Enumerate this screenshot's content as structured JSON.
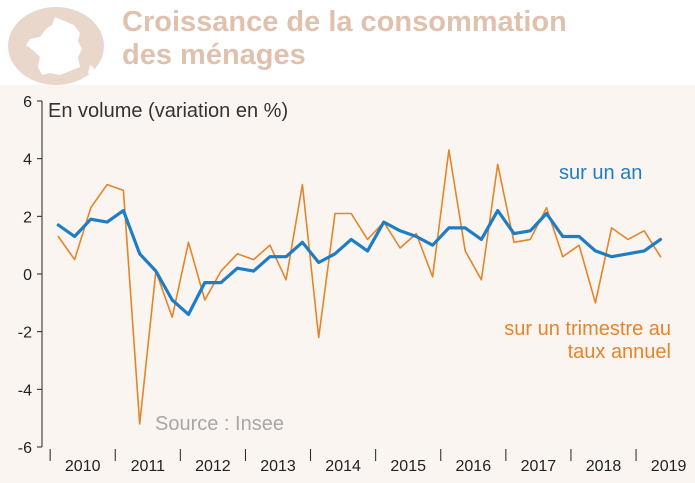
{
  "header": {
    "title_line1": "Croissance de la consommation",
    "title_line2": "des ménages",
    "badge_icon": "france-map-icon"
  },
  "colors": {
    "annual": "#1f7dc3",
    "quarterly": "#e3852a",
    "title": "#dfc1ae",
    "badge": "#ead7cb",
    "plot_background": "#fbf5f1"
  },
  "chart_data": {
    "type": "line",
    "subtitle": "En volume (variation en %)",
    "source": "Source : Insee",
    "xlabel": "",
    "ylabel": "",
    "ylim": [
      -6,
      6
    ],
    "yticks": [
      -6,
      -4,
      -2,
      0,
      2,
      4,
      6
    ],
    "xlim": [
      2009.75,
      2019.55
    ],
    "year_labels": [
      "2010",
      "2011",
      "2012",
      "2013",
      "2014",
      "2015",
      "2016",
      "2017",
      "2018",
      "2019"
    ],
    "grid": false,
    "legend": "inline labels next to the lines",
    "series": [
      {
        "name": "sur un an",
        "label_lines": [
          "sur un an"
        ],
        "color": "#1f7dc3",
        "x": [
          2010.0,
          2010.25,
          2010.5,
          2010.75,
          2011.0,
          2011.25,
          2011.5,
          2011.75,
          2012.0,
          2012.25,
          2012.5,
          2012.75,
          2013.0,
          2013.25,
          2013.5,
          2013.75,
          2014.0,
          2014.25,
          2014.5,
          2014.75,
          2015.0,
          2015.25,
          2015.5,
          2015.75,
          2016.0,
          2016.25,
          2016.5,
          2016.75,
          2017.0,
          2017.25,
          2017.5,
          2017.75,
          2018.0,
          2018.25,
          2018.5,
          2018.75,
          2019.0,
          2019.25
        ],
        "values": [
          1.7,
          1.3,
          1.9,
          1.8,
          2.2,
          0.7,
          0.1,
          -0.9,
          -1.4,
          -0.3,
          -0.3,
          0.2,
          0.1,
          0.6,
          0.6,
          1.1,
          0.4,
          0.7,
          1.2,
          0.8,
          1.8,
          1.5,
          1.3,
          1.0,
          1.6,
          1.6,
          1.2,
          2.2,
          1.4,
          1.5,
          2.1,
          1.3,
          1.3,
          0.8,
          0.6,
          0.7,
          0.8,
          1.2
        ]
      },
      {
        "name": "sur un trimestre au taux annuel",
        "label_lines": [
          "sur un trimestre au",
          "taux annuel"
        ],
        "color": "#e3852a",
        "x": [
          2010.0,
          2010.25,
          2010.5,
          2010.75,
          2011.0,
          2011.25,
          2011.5,
          2011.75,
          2012.0,
          2012.25,
          2012.5,
          2012.75,
          2013.0,
          2013.25,
          2013.5,
          2013.75,
          2014.0,
          2014.25,
          2014.5,
          2014.75,
          2015.0,
          2015.25,
          2015.5,
          2015.75,
          2016.0,
          2016.25,
          2016.5,
          2016.75,
          2017.0,
          2017.25,
          2017.5,
          2017.75,
          2018.0,
          2018.25,
          2018.5,
          2018.75,
          2019.0,
          2019.25
        ],
        "values": [
          1.3,
          0.5,
          2.3,
          3.1,
          2.9,
          -5.2,
          0.1,
          -1.5,
          1.1,
          -0.9,
          0.1,
          0.7,
          0.5,
          1.0,
          -0.2,
          3.1,
          -2.2,
          2.1,
          2.1,
          1.2,
          1.8,
          0.9,
          1.4,
          -0.1,
          4.3,
          0.8,
          -0.2,
          3.8,
          1.1,
          1.2,
          2.3,
          0.6,
          1.0,
          -1.0,
          1.6,
          1.2,
          1.5,
          0.6
        ]
      }
    ]
  }
}
